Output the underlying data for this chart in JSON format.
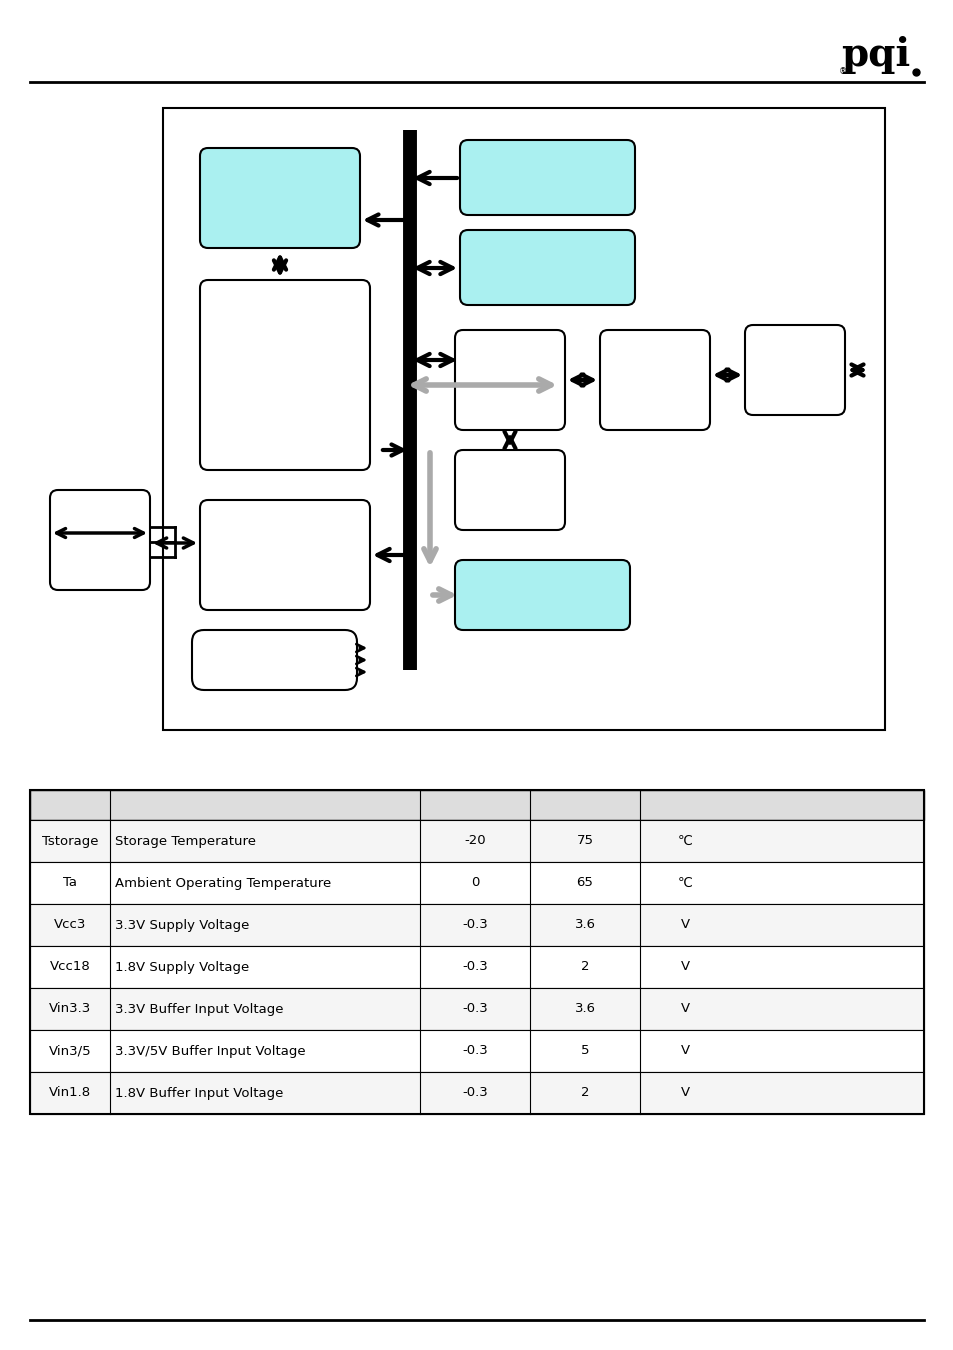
{
  "bg_color": "#ffffff",
  "light_blue": "#aaf0f0",
  "table_header_bg": "#e0e0e0",
  "table_rows": [
    [
      "Tstorage",
      "Storage Temperature",
      "-20",
      "75",
      "℃"
    ],
    [
      "Ta",
      "Ambient Operating Temperature",
      "0",
      "65",
      "℃"
    ],
    [
      "Vcc3",
      "3.3V Supply Voltage",
      "-0.3",
      "3.6",
      "V"
    ],
    [
      "Vcc18",
      "1.8V Supply Voltage",
      "-0.3",
      "2",
      "V"
    ],
    [
      "Vin3.3",
      "3.3V Buffer Input Voltage",
      "-0.3",
      "3.6",
      "V"
    ],
    [
      "Vin3/5",
      "3.3V/5V Buffer Input Voltage",
      "-0.3",
      "5",
      "V"
    ],
    [
      "Vin1.8",
      "1.8V Buffer Input Voltage",
      "-0.3",
      "2",
      "V"
    ]
  ],
  "pqi_logo": "pqi",
  "gray_arrow": "#aaaaaa",
  "dark_line": "#000000"
}
